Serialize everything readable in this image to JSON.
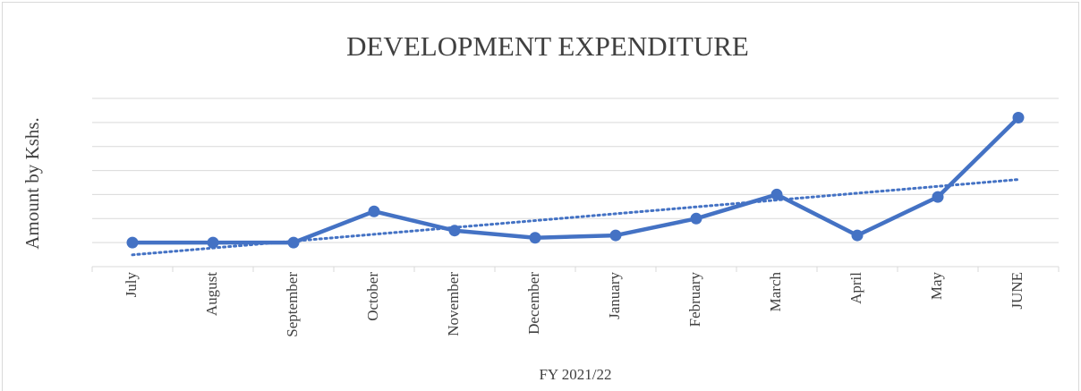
{
  "chart_data": {
    "type": "line",
    "title": "DEVELOPMENT EXPENDITURE",
    "y_label": "Amount by Kshs.",
    "x_label": "FY 2021/22",
    "categories": [
      "July",
      "August",
      "September",
      "October",
      "November",
      "December",
      "January",
      "February",
      "March",
      "April",
      "May",
      "JUNE"
    ],
    "series": [
      {
        "color": "#4472c4",
        "values": [
          1.0,
          1.0,
          1.0,
          2.3,
          1.5,
          1.2,
          1.3,
          2.0,
          3.0,
          1.3,
          2.9,
          6.2
        ]
      }
    ],
    "ylim": [
      0,
      7
    ],
    "yticks": [
      0,
      1,
      2,
      3,
      4,
      5,
      6,
      7
    ],
    "grid": true,
    "trendline": true
  }
}
